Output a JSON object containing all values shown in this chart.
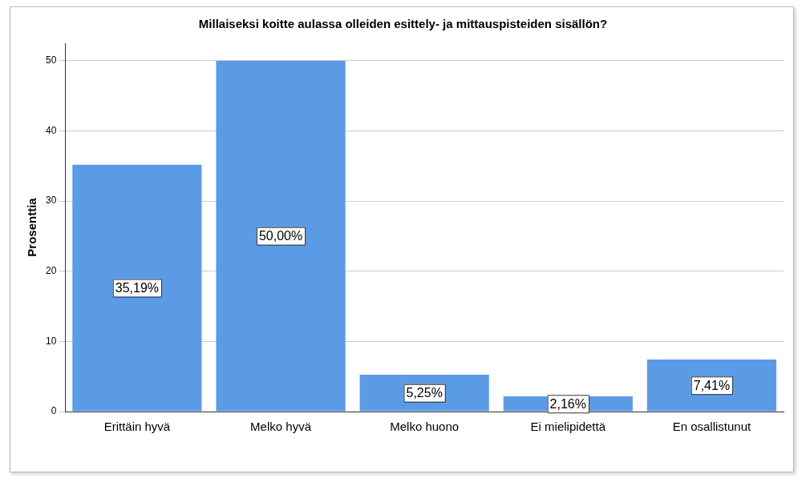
{
  "chart_data": {
    "type": "bar",
    "title": "Millaiseksi koitte aulassa olleiden esittely- ja mittauspisteiden sisällön?",
    "ylabel": "Prosenttia",
    "categories": [
      "Erittäin hyvä",
      "Melko hyvä",
      "Melko huono",
      "Ei mielipidettä",
      "En osallistunut"
    ],
    "values": [
      35.19,
      50.0,
      5.25,
      2.16,
      7.41
    ],
    "value_labels": [
      "35,19%",
      "50,00%",
      "5,25%",
      "2,16%",
      "7,41%"
    ],
    "color": "#5b9be6",
    "ylim": [
      0,
      52.5
    ],
    "yticks": [
      0,
      10,
      20,
      30,
      40,
      50
    ],
    "grid": "y",
    "legend": false
  }
}
